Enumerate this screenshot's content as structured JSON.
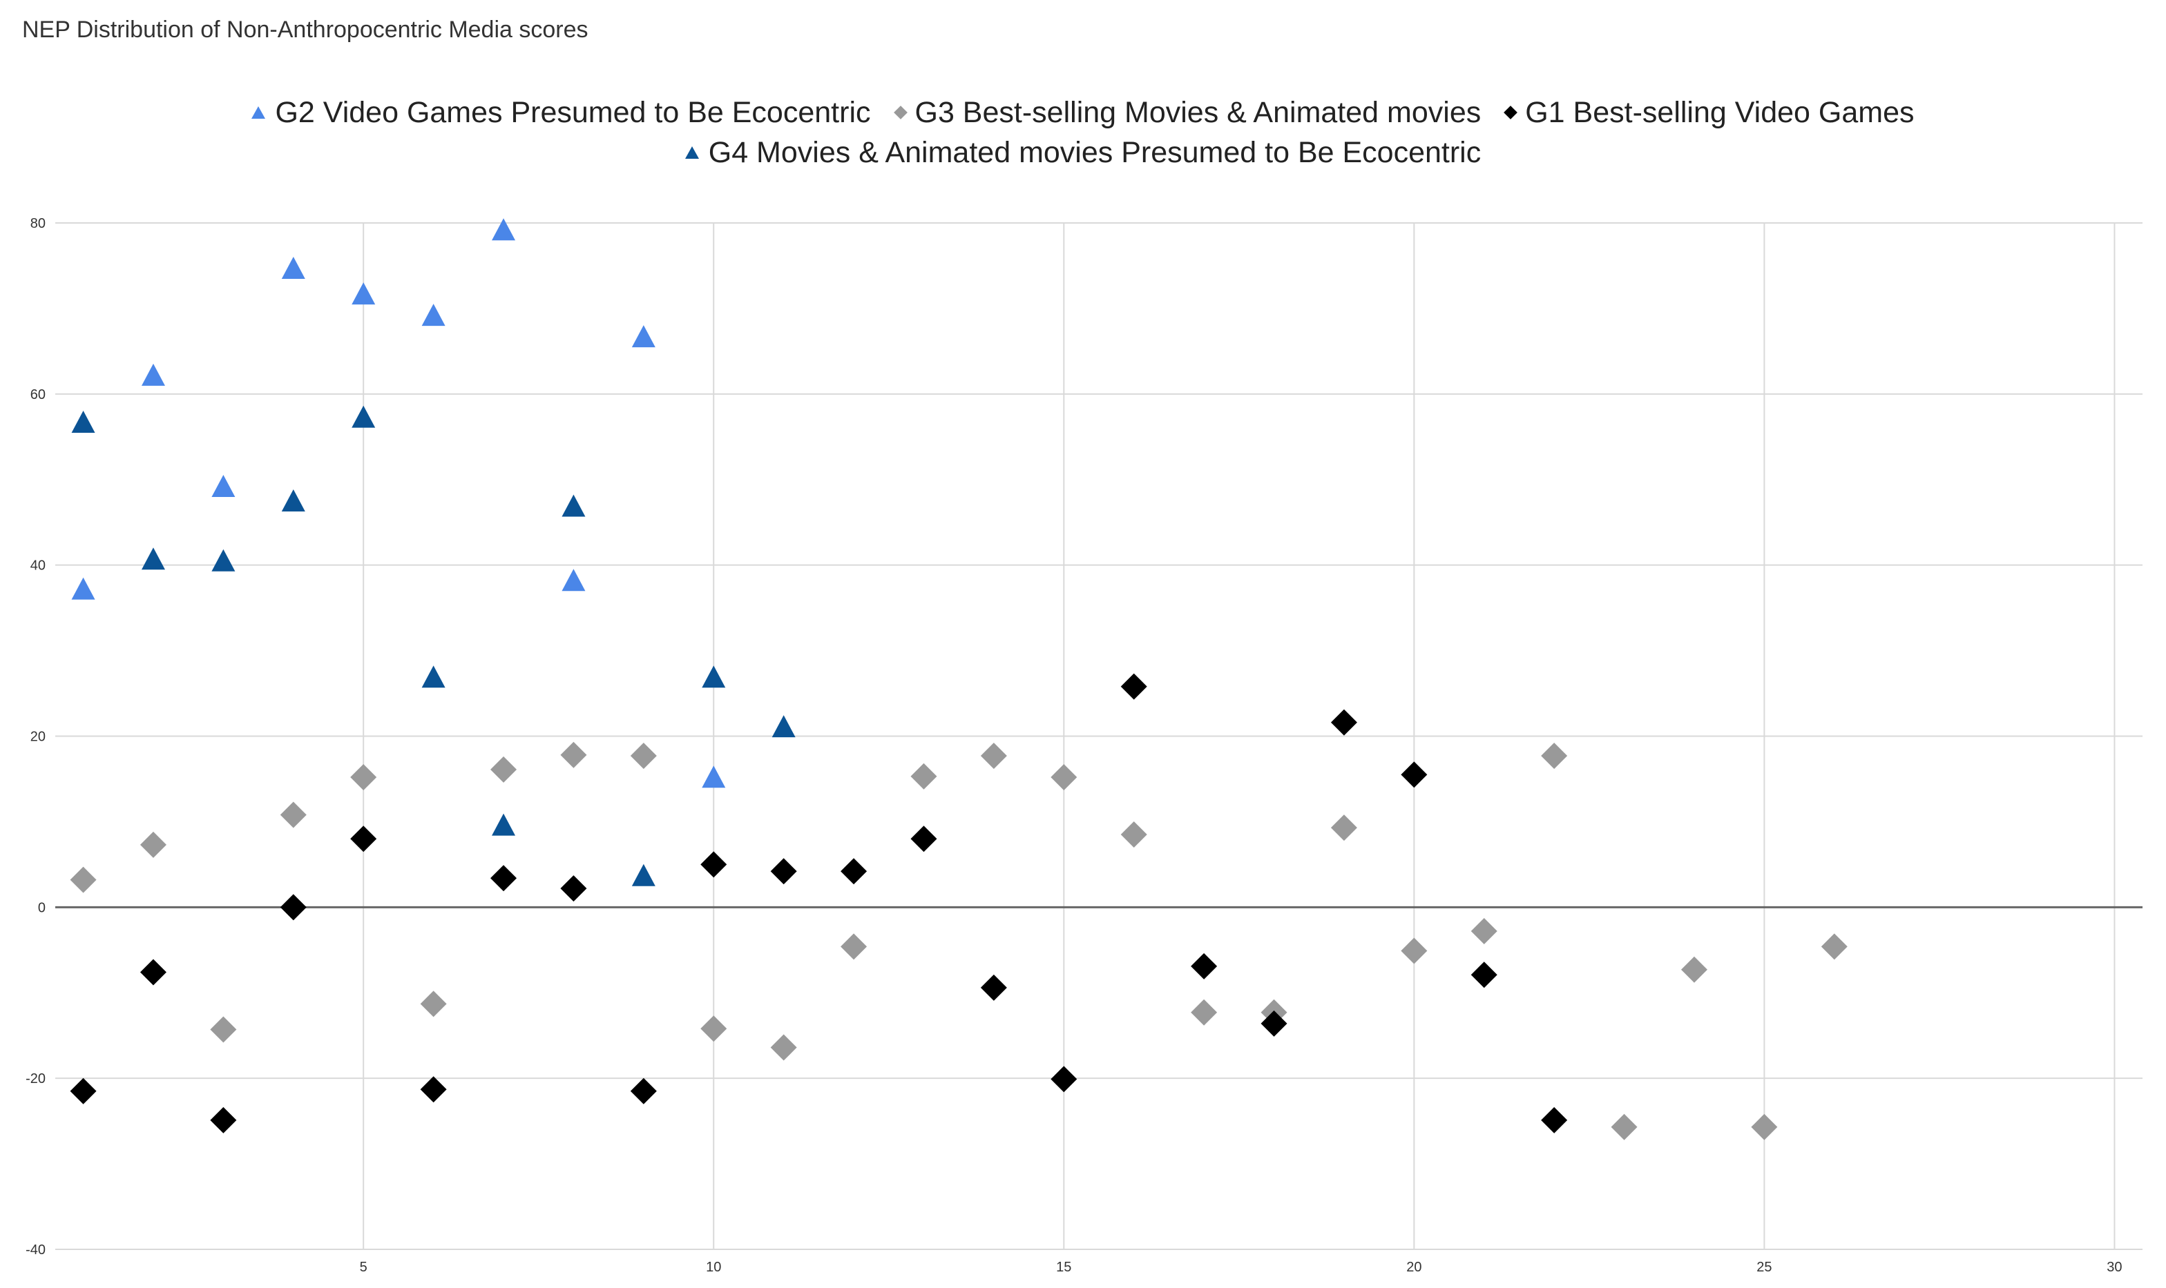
{
  "chart_data": {
    "type": "scatter",
    "title": "NEP Distribution of Non-Anthropocentric Media scores",
    "xlabel": "",
    "ylabel": "",
    "xlim": [
      0.6,
      30.4
    ],
    "ylim": [
      -40,
      80
    ],
    "x_ticks": [
      5,
      10,
      15,
      20,
      25,
      30
    ],
    "y_ticks": [
      -40,
      -20,
      0,
      20,
      40,
      60,
      80
    ],
    "grid": true,
    "legend_position": "top-center",
    "series": [
      {
        "name": "G2 Video Games Presumed to Be Ecocentric",
        "marker": "triangle",
        "color": "#4a86e8",
        "points": [
          {
            "x": 1,
            "y": 37
          },
          {
            "x": 2,
            "y": 62
          },
          {
            "x": 3,
            "y": 49
          },
          {
            "x": 4,
            "y": 74.5
          },
          {
            "x": 5,
            "y": 71.5
          },
          {
            "x": 6,
            "y": 69
          },
          {
            "x": 7,
            "y": 79
          },
          {
            "x": 8,
            "y": 38
          },
          {
            "x": 9,
            "y": 66.5
          },
          {
            "x": 10,
            "y": 15
          }
        ]
      },
      {
        "name": "G3 Best-selling Movies & Animated movies",
        "marker": "diamond",
        "color": "#999999",
        "points": [
          {
            "x": 1,
            "y": 3.2
          },
          {
            "x": 2,
            "y": 7.3
          },
          {
            "x": 3,
            "y": -14.3
          },
          {
            "x": 4,
            "y": 10.8
          },
          {
            "x": 5,
            "y": 15.2
          },
          {
            "x": 6,
            "y": -11.3
          },
          {
            "x": 7,
            "y": 16.1
          },
          {
            "x": 8,
            "y": 17.8
          },
          {
            "x": 9,
            "y": 17.7
          },
          {
            "x": 10,
            "y": -14.2
          },
          {
            "x": 11,
            "y": -16.4
          },
          {
            "x": 12,
            "y": -4.6
          },
          {
            "x": 13,
            "y": 15.3
          },
          {
            "x": 14,
            "y": 17.7
          },
          {
            "x": 15,
            "y": 15.2
          },
          {
            "x": 16,
            "y": 8.5
          },
          {
            "x": 17,
            "y": -12.3
          },
          {
            "x": 18,
            "y": -12.3
          },
          {
            "x": 19,
            "y": 9.3
          },
          {
            "x": 20,
            "y": -5.1
          },
          {
            "x": 21,
            "y": -2.8
          },
          {
            "x": 22,
            "y": 17.7
          },
          {
            "x": 23,
            "y": -25.7
          },
          {
            "x": 24,
            "y": -7.3
          },
          {
            "x": 25,
            "y": -25.7
          },
          {
            "x": 26,
            "y": -4.6
          }
        ]
      },
      {
        "name": "G1 Best-selling Video Games",
        "marker": "diamond",
        "color": "#000000",
        "points": [
          {
            "x": 1,
            "y": -21.5
          },
          {
            "x": 2,
            "y": -7.6
          },
          {
            "x": 3,
            "y": -24.9
          },
          {
            "x": 4,
            "y": 0
          },
          {
            "x": 5,
            "y": 8
          },
          {
            "x": 6,
            "y": -21.3
          },
          {
            "x": 7,
            "y": 3.4
          },
          {
            "x": 8,
            "y": 2.2
          },
          {
            "x": 9,
            "y": -21.5
          },
          {
            "x": 10,
            "y": 5
          },
          {
            "x": 11,
            "y": 4.2
          },
          {
            "x": 12,
            "y": 4.2
          },
          {
            "x": 13,
            "y": 8
          },
          {
            "x": 14,
            "y": -9.4
          },
          {
            "x": 15,
            "y": -20.1
          },
          {
            "x": 16,
            "y": 25.8
          },
          {
            "x": 17,
            "y": -6.9
          },
          {
            "x": 18,
            "y": -13.6
          },
          {
            "x": 19,
            "y": 21.6
          },
          {
            "x": 20,
            "y": 15.5
          },
          {
            "x": 21,
            "y": -7.9
          },
          {
            "x": 22,
            "y": -24.9
          }
        ]
      },
      {
        "name": "G4 Movies & Animated movies Presumed to Be Ecocentric",
        "marker": "triangle",
        "color": "#0b5394",
        "points": [
          {
            "x": 1,
            "y": 56.5
          },
          {
            "x": 2,
            "y": 40.5
          },
          {
            "x": 3,
            "y": 40.3
          },
          {
            "x": 4,
            "y": 47.3
          },
          {
            "x": 5,
            "y": 57.1
          },
          {
            "x": 6,
            "y": 26.7
          },
          {
            "x": 7,
            "y": 9.4
          },
          {
            "x": 8,
            "y": 46.7
          },
          {
            "x": 9,
            "y": 3.5
          },
          {
            "x": 10,
            "y": 26.7
          },
          {
            "x": 11,
            "y": 20.9
          }
        ]
      }
    ]
  }
}
